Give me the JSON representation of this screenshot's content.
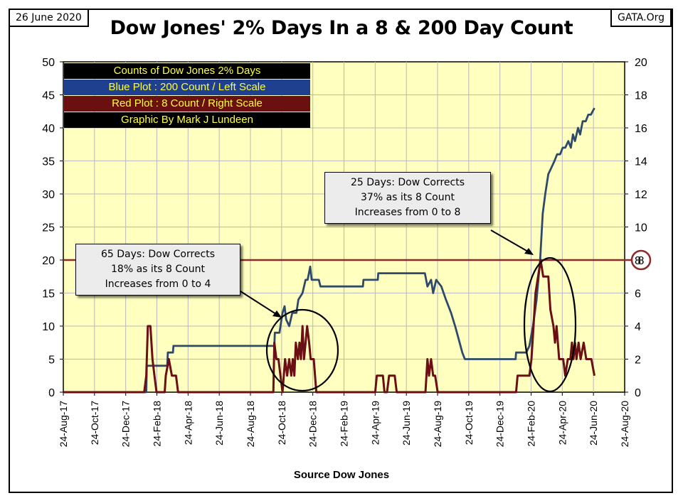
{
  "header": {
    "date": "26 June 2020",
    "title": "Dow Jones' 2% Days In a 8 & 200 Day Count",
    "source_site": "GATA.Org"
  },
  "legend": [
    {
      "text": "Counts of Dow Jones 2% Days",
      "bg": "#000000"
    },
    {
      "text": "Blue Plot : 200 Count / Left Scale",
      "bg": "#1f3f8f"
    },
    {
      "text": "Red Plot : 8 Count / Right Scale",
      "bg": "#6b1010"
    },
    {
      "text": "Graphic By Mark J Lundeen",
      "bg": "#000000"
    }
  ],
  "annotations": [
    {
      "text": "65 Days: Dow Corrects\n18% as its 8 Count\nIncreases from 0 to 4"
    },
    {
      "text": "25 Days: Dow Corrects\n37% as its 8 Count\nIncreases from 0 to 8"
    }
  ],
  "reference": {
    "label": "8"
  },
  "colors": {
    "plot_bg": "#ffffc0",
    "blue_line": "#2e4a6b",
    "red_line": "#6b0f14",
    "ref_line": "#8b2b2b",
    "legend_text": "#ffff3a"
  },
  "chart_data": {
    "type": "line",
    "title": "Dow Jones' 2% Days In a 8 & 200 Day Count",
    "xlabel": "Source Dow Jones",
    "ylabel_left": "",
    "ylabel_right": "",
    "x_tick_labels": [
      "24-Aug-17",
      "24-Oct-17",
      "24-Dec-17",
      "24-Feb-18",
      "24-Apr-18",
      "24-Jun-18",
      "24-Aug-18",
      "24-Oct-18",
      "24-Dec-18",
      "24-Feb-19",
      "24-Apr-19",
      "24-Jun-19",
      "24-Aug-19",
      "24-Oct-19",
      "24-Dec-19",
      "24-Feb-20",
      "24-Apr-20",
      "24-Jun-20",
      "24-Aug-20"
    ],
    "xlim": [
      "2017-08-24",
      "2020-08-24"
    ],
    "ylim_left": [
      0,
      50
    ],
    "yticks_left": [
      0,
      5,
      10,
      15,
      20,
      25,
      30,
      35,
      40,
      45,
      50
    ],
    "ylim_right": [
      0,
      20
    ],
    "yticks_right": [
      0,
      2,
      4,
      6,
      8,
      10,
      12,
      14,
      16,
      18,
      20
    ],
    "grid": true,
    "reference_line": {
      "axis": "right",
      "value": 8
    },
    "series": [
      {
        "name": "Blue Plot : 200 Count / Left Scale",
        "axis": "left",
        "points": [
          [
            "2017-08-24",
            0
          ],
          [
            "2018-02-02",
            0
          ],
          [
            "2018-02-03",
            4
          ],
          [
            "2018-03-15",
            4
          ],
          [
            "2018-03-16",
            6
          ],
          [
            "2018-03-26",
            6
          ],
          [
            "2018-03-27",
            7
          ],
          [
            "2018-10-10",
            7
          ],
          [
            "2018-10-11",
            9
          ],
          [
            "2018-10-20",
            9
          ],
          [
            "2018-10-26",
            12
          ],
          [
            "2018-10-30",
            13
          ],
          [
            "2018-11-02",
            11
          ],
          [
            "2018-11-08",
            10
          ],
          [
            "2018-11-14",
            12
          ],
          [
            "2018-11-22",
            12
          ],
          [
            "2018-11-26",
            14
          ],
          [
            "2018-12-04",
            15
          ],
          [
            "2018-12-10",
            17
          ],
          [
            "2018-12-14",
            17
          ],
          [
            "2018-12-19",
            19
          ],
          [
            "2018-12-22",
            17
          ],
          [
            "2019-01-05",
            17
          ],
          [
            "2019-01-08",
            16
          ],
          [
            "2019-04-01",
            16
          ],
          [
            "2019-04-02",
            17
          ],
          [
            "2019-04-30",
            17
          ],
          [
            "2019-05-01",
            18
          ],
          [
            "2019-07-31",
            18
          ],
          [
            "2019-08-05",
            16
          ],
          [
            "2019-08-12",
            17
          ],
          [
            "2019-08-16",
            15
          ],
          [
            "2019-08-22",
            17
          ],
          [
            "2019-09-01",
            16
          ],
          [
            "2019-09-10",
            14
          ],
          [
            "2019-09-20",
            12
          ],
          [
            "2019-09-28",
            10
          ],
          [
            "2019-10-05",
            8
          ],
          [
            "2019-10-12",
            6
          ],
          [
            "2019-10-17",
            5
          ],
          [
            "2020-01-24",
            5
          ],
          [
            "2020-01-25",
            6
          ],
          [
            "2020-02-14",
            6
          ],
          [
            "2020-02-20",
            7
          ],
          [
            "2020-02-27",
            10
          ],
          [
            "2020-03-05",
            14
          ],
          [
            "2020-03-12",
            20
          ],
          [
            "2020-03-17",
            27
          ],
          [
            "2020-03-22",
            30
          ],
          [
            "2020-03-28",
            33
          ],
          [
            "2020-04-03",
            34
          ],
          [
            "2020-04-09",
            35
          ],
          [
            "2020-04-14",
            36
          ],
          [
            "2020-04-20",
            36
          ],
          [
            "2020-04-25",
            37
          ],
          [
            "2020-04-30",
            37
          ],
          [
            "2020-05-06",
            38
          ],
          [
            "2020-05-11",
            37
          ],
          [
            "2020-05-15",
            39
          ],
          [
            "2020-05-19",
            38
          ],
          [
            "2020-05-25",
            40
          ],
          [
            "2020-05-29",
            39
          ],
          [
            "2020-06-03",
            41
          ],
          [
            "2020-06-09",
            41
          ],
          [
            "2020-06-14",
            42
          ],
          [
            "2020-06-19",
            42
          ],
          [
            "2020-06-26",
            43
          ]
        ]
      },
      {
        "name": "Red Plot : 8 Count / Right Scale",
        "axis": "right",
        "points": [
          [
            "2017-08-24",
            0
          ],
          [
            "2018-01-29",
            0
          ],
          [
            "2018-02-02",
            1
          ],
          [
            "2018-02-05",
            4
          ],
          [
            "2018-02-10",
            4
          ],
          [
            "2018-02-14",
            2
          ],
          [
            "2018-02-18",
            1
          ],
          [
            "2018-02-22",
            0
          ],
          [
            "2018-03-10",
            0
          ],
          [
            "2018-03-12",
            1
          ],
          [
            "2018-03-18",
            2
          ],
          [
            "2018-03-24",
            1
          ],
          [
            "2018-04-01",
            1
          ],
          [
            "2018-04-05",
            0
          ],
          [
            "2018-10-08",
            0
          ],
          [
            "2018-10-10",
            3
          ],
          [
            "2018-10-14",
            2
          ],
          [
            "2018-10-18",
            2
          ],
          [
            "2018-10-22",
            1
          ],
          [
            "2018-10-26",
            0
          ],
          [
            "2018-10-31",
            2
          ],
          [
            "2018-11-04",
            1
          ],
          [
            "2018-11-08",
            2
          ],
          [
            "2018-11-12",
            1
          ],
          [
            "2018-11-15",
            2
          ],
          [
            "2018-11-18",
            1
          ],
          [
            "2018-11-21",
            3
          ],
          [
            "2018-11-25",
            2
          ],
          [
            "2018-11-28",
            3
          ],
          [
            "2018-12-01",
            2
          ],
          [
            "2018-12-04",
            4
          ],
          [
            "2018-12-07",
            2
          ],
          [
            "2018-12-10",
            3
          ],
          [
            "2018-12-13",
            4
          ],
          [
            "2018-12-17",
            3
          ],
          [
            "2018-12-20",
            2
          ],
          [
            "2018-12-26",
            2
          ],
          [
            "2018-12-31",
            0
          ],
          [
            "2019-04-25",
            0
          ],
          [
            "2019-04-28",
            1
          ],
          [
            "2019-05-10",
            1
          ],
          [
            "2019-05-13",
            0
          ],
          [
            "2019-05-18",
            0
          ],
          [
            "2019-05-22",
            1
          ],
          [
            "2019-06-02",
            1
          ],
          [
            "2019-06-06",
            0
          ],
          [
            "2019-08-01",
            0
          ],
          [
            "2019-08-05",
            2
          ],
          [
            "2019-08-08",
            1
          ],
          [
            "2019-08-12",
            2
          ],
          [
            "2019-08-16",
            1
          ],
          [
            "2019-08-20",
            1
          ],
          [
            "2019-08-25",
            0
          ],
          [
            "2020-01-25",
            0
          ],
          [
            "2020-01-28",
            1
          ],
          [
            "2020-02-20",
            1
          ],
          [
            "2020-02-24",
            2
          ],
          [
            "2020-02-28",
            4
          ],
          [
            "2020-03-03",
            6
          ],
          [
            "2020-03-08",
            7
          ],
          [
            "2020-03-13",
            8
          ],
          [
            "2020-03-18",
            7
          ],
          [
            "2020-03-28",
            7
          ],
          [
            "2020-04-01",
            5
          ],
          [
            "2020-04-07",
            4
          ],
          [
            "2020-04-10",
            3
          ],
          [
            "2020-04-13",
            4
          ],
          [
            "2020-04-18",
            2
          ],
          [
            "2020-04-26",
            2
          ],
          [
            "2020-04-30",
            1
          ],
          [
            "2020-05-05",
            2
          ],
          [
            "2020-05-10",
            2
          ],
          [
            "2020-05-13",
            3
          ],
          [
            "2020-05-16",
            2
          ],
          [
            "2020-05-19",
            3
          ],
          [
            "2020-05-22",
            2
          ],
          [
            "2020-05-26",
            3
          ],
          [
            "2020-05-30",
            2
          ],
          [
            "2020-06-05",
            3
          ],
          [
            "2020-06-10",
            2
          ],
          [
            "2020-06-15",
            2
          ],
          [
            "2020-06-20",
            2
          ],
          [
            "2020-06-26",
            1
          ]
        ]
      }
    ]
  }
}
